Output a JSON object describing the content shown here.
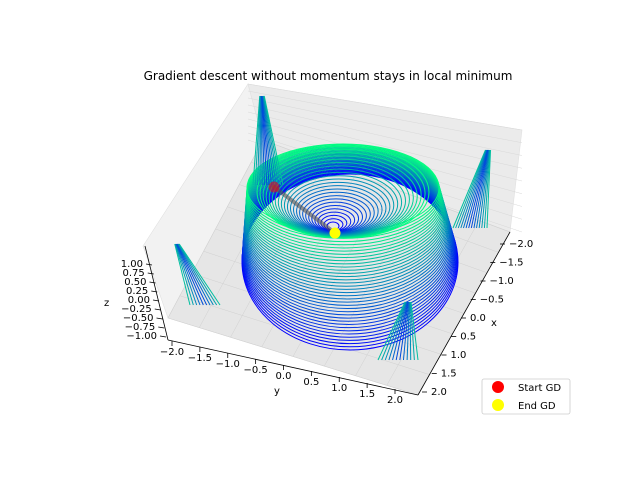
{
  "chart_data": {
    "type": "surface3d-contour",
    "title": "Gradient descent without momentum stays in local minimum",
    "xlabel": "x",
    "ylabel": "y",
    "zlabel": "z",
    "xlim": [
      -2.0,
      2.0
    ],
    "ylim": [
      -2.0,
      2.0
    ],
    "zlim": [
      -1.0,
      1.0
    ],
    "x_ticks": [
      "−2.0",
      "−1.5",
      "−1.0",
      "−0.5",
      "0.0",
      "0.5",
      "1.0",
      "1.5",
      "2.0"
    ],
    "y_ticks": [
      "−2.0",
      "−1.5",
      "−1.0",
      "−0.5",
      "0.0",
      "0.5",
      "1.0",
      "1.5",
      "2.0"
    ],
    "z_ticks": [
      "1.00",
      "0.75",
      "0.50",
      "0.25",
      "0.00",
      "−0.25",
      "−0.50",
      "−0.75",
      "−1.00"
    ],
    "colormap": [
      "#0000ff",
      "#00ff80"
    ],
    "path_color": "#555555",
    "series": [
      {
        "name": "Start GD",
        "color": "#ff0000",
        "point": {
          "x": -1.0,
          "y": -1.0
        }
      },
      {
        "name": "End GD",
        "color": "#ffff00",
        "point": {
          "x": 0.0,
          "y": 0.0
        }
      }
    ],
    "legend_position": "bottom-right",
    "grid": true
  }
}
